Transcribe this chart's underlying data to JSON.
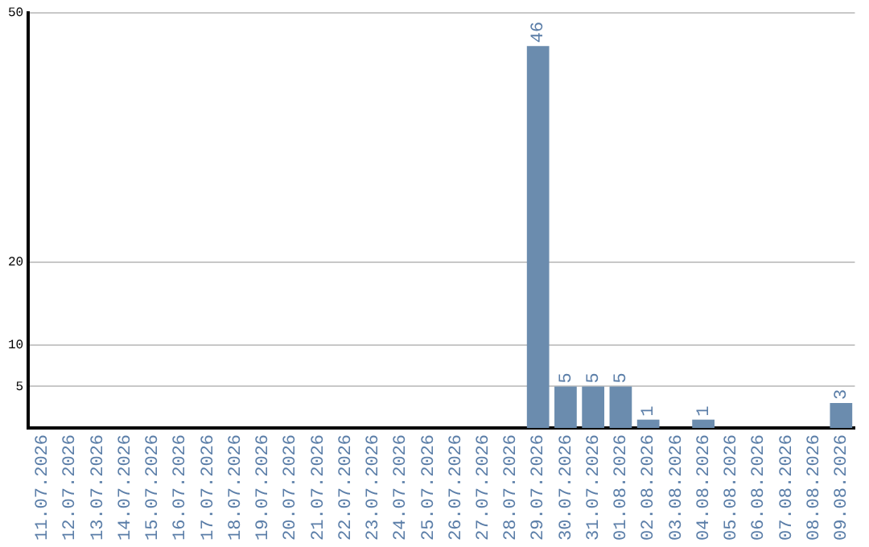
{
  "chart_data": {
    "type": "bar",
    "categories": [
      "11.07.2026",
      "12.07.2026",
      "13.07.2026",
      "14.07.2026",
      "15.07.2026",
      "16.07.2026",
      "17.07.2026",
      "18.07.2026",
      "19.07.2026",
      "20.07.2026",
      "21.07.2026",
      "22.07.2026",
      "23.07.2026",
      "24.07.2026",
      "25.07.2026",
      "26.07.2026",
      "27.07.2026",
      "28.07.2026",
      "29.07.2026",
      "30.07.2026",
      "31.07.2026",
      "01.08.2026",
      "02.08.2026",
      "03.08.2026",
      "04.08.2026",
      "05.08.2026",
      "06.08.2026",
      "07.08.2026",
      "08.08.2026",
      "09.08.2026"
    ],
    "values": [
      0,
      0,
      0,
      0,
      0,
      0,
      0,
      0,
      0,
      0,
      0,
      0,
      0,
      0,
      0,
      0,
      0,
      0,
      46,
      5,
      5,
      5,
      1,
      0,
      1,
      0,
      0,
      0,
      0,
      3
    ],
    "value_labels": [
      null,
      null,
      null,
      null,
      null,
      null,
      null,
      null,
      null,
      null,
      null,
      null,
      null,
      null,
      null,
      null,
      null,
      null,
      "46",
      "5",
      "5",
      "5",
      "1",
      null,
      "1",
      null,
      null,
      null,
      null,
      "3"
    ],
    "color": "#6b8cae",
    "ylim": [
      0,
      50
    ],
    "yticks": [
      5,
      10,
      20,
      50
    ],
    "grid": "y",
    "legend": false
  }
}
